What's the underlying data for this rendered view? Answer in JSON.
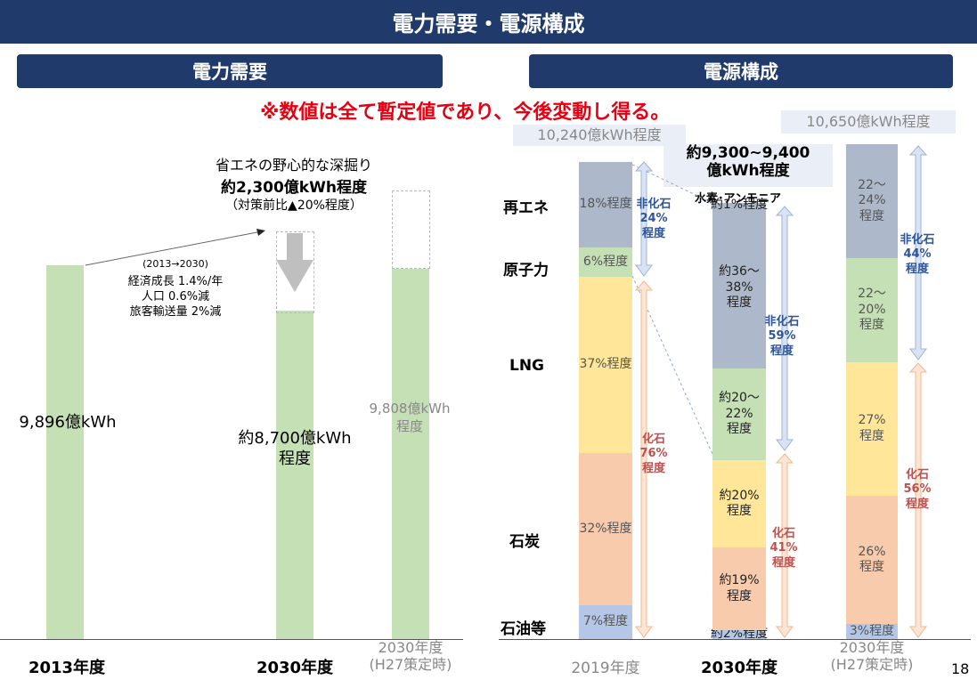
{
  "page": {
    "title": "電力需要・電源構成",
    "left_header": "電力需要",
    "right_header": "電源構成",
    "notice": "※数値は全て暫定値であり、今後変動し得る。",
    "page_number": "18"
  },
  "chart_data": [
    {
      "type": "bar",
      "title": "電力需要",
      "categories": [
        "2013年度",
        "2030年度",
        "2030年度\n(H27策定時)"
      ],
      "values": [
        9896,
        8700,
        9808
      ],
      "unit": "億kWh",
      "bar_labels": [
        "9,896億kWh",
        "約8,700億kWh\n程度",
        "9,808億kWh\n程度"
      ],
      "annotations": {
        "savings_line1": "省エネの野心的な深掘り",
        "savings_line2": "約2,300億kWh程度",
        "savings_line3": "（対策前比▲20%程度）",
        "growth_period": "(2013→2030)",
        "growth_econ": "経済成長 1.4%/年",
        "growth_pop": "人口 0.6%減",
        "growth_pax": "旅客輸送量  2%減"
      },
      "colors": {
        "bar": "#c5e0b4",
        "ghost": "#bbbbbb",
        "arrow": "#bfbfbf"
      }
    },
    {
      "type": "bar",
      "stacked": true,
      "title": "電源構成",
      "categories": [
        "2019年度",
        "2030年度",
        "2030年度\n(H27策定時)"
      ],
      "series_names": [
        "再エネ",
        "原子力",
        "LNG",
        "石炭",
        "石油等"
      ],
      "totals": [
        "10,240億kWh程度",
        "約9,300~9,400\n億kWh程度",
        "10,650億kWh程度"
      ],
      "bars": [
        {
          "category": "2019年度",
          "segments": [
            {
              "source": "石油等",
              "value": 7,
              "label": "7%程度",
              "color": "#b4c7e7"
            },
            {
              "source": "石炭",
              "value": 32,
              "label": "32%程度",
              "color": "#f8cbad"
            },
            {
              "source": "LNG",
              "value": 37,
              "label": "37%程度",
              "color": "#ffe699"
            },
            {
              "source": "原子力",
              "value": 6,
              "label": "6%程度",
              "color": "#c5e0b4"
            },
            {
              "source": "再エネ",
              "value": 18,
              "label": "18%程度",
              "color": "#adb9ca"
            }
          ],
          "non_fossil_label": "非化石\n24%\n程度",
          "fossil_label": "化石\n76%\n程度"
        },
        {
          "category": "2030年度",
          "segments": [
            {
              "source": "石油等",
              "value": 2,
              "label": "約2%程度",
              "color": "#b4c7e7"
            },
            {
              "source": "石炭",
              "value": 19,
              "label": "約19%\n程度",
              "color": "#f8cbad"
            },
            {
              "source": "LNG",
              "value": 20,
              "label": "約20%\n程度",
              "color": "#ffe699"
            },
            {
              "source": "原子力",
              "value": 21,
              "label": "約20～22%\n程度",
              "color": "#c5e0b4"
            },
            {
              "source": "再エネ",
              "value": 37,
              "label": "約36～38%\n程度",
              "color": "#adb9ca"
            },
            {
              "source": "水素・アンモニア",
              "value": 1,
              "label": "約1%程度",
              "color": "#adb9ca"
            }
          ],
          "hydrogen_label": "水素･アンモニア",
          "non_fossil_label": "非化石\n59%\n程度",
          "fossil_label": "化石\n41%\n程度"
        },
        {
          "category": "2030年度\n(H27策定時)",
          "segments": [
            {
              "source": "石油等",
              "value": 3,
              "label": "3%程度",
              "color": "#b4c7e7"
            },
            {
              "source": "石炭",
              "value": 26,
              "label": "26%\n程度",
              "color": "#f8cbad"
            },
            {
              "source": "LNG",
              "value": 27,
              "label": "27%\n程度",
              "color": "#ffe699"
            },
            {
              "source": "原子力",
              "value": 21,
              "label": "22～20%\n程度",
              "color": "#c5e0b4"
            },
            {
              "source": "再エネ",
              "value": 23,
              "label": "22～24%\n程度",
              "color": "#adb9ca"
            }
          ],
          "non_fossil_label": "非化石\n44%\n程度",
          "fossil_label": "化石\n56%\n程度"
        }
      ],
      "colors": {
        "non_fossil_text": "#2e5597",
        "fossil_text": "#c0504d",
        "non_fossil_arrow": "#dae3f3",
        "fossil_arrow": "#fbe5d6"
      }
    }
  ]
}
